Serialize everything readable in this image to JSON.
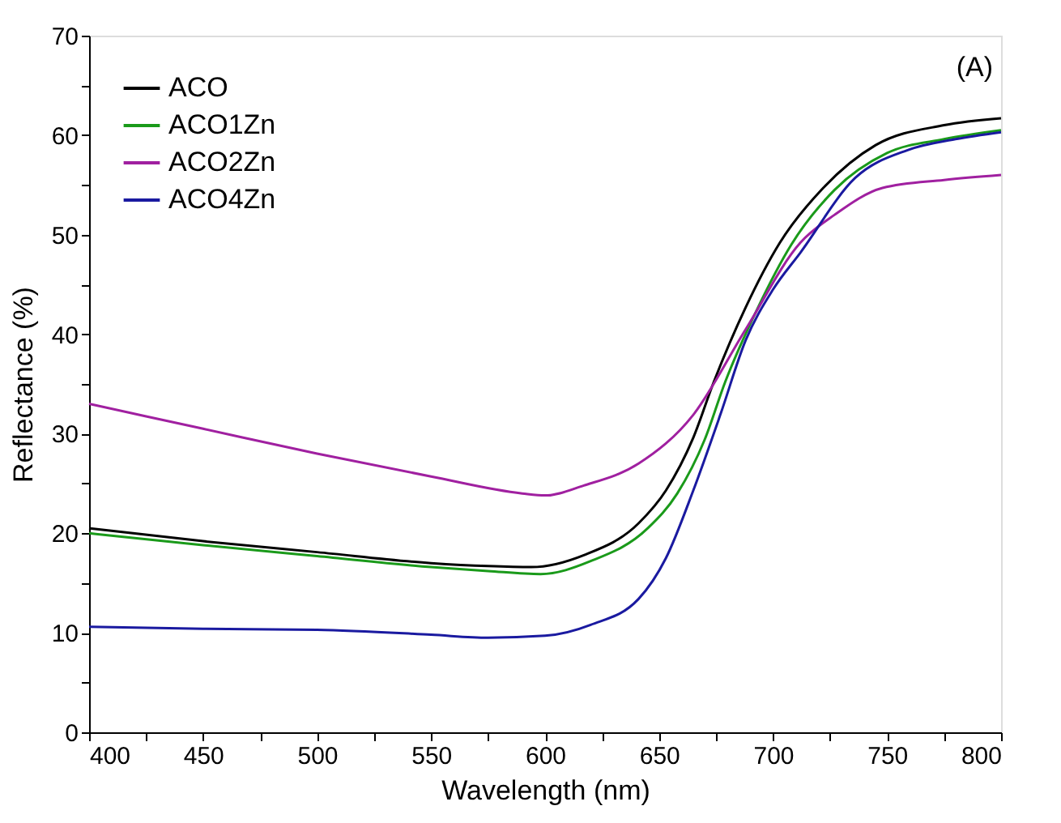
{
  "chart_data": {
    "type": "line",
    "xlabel": "Wavelength (nm)",
    "ylabel": "Reflectance (%)",
    "xlim": [
      400,
      800
    ],
    "ylim": [
      0,
      70
    ],
    "xticks": [
      400,
      {
        "value": 425,
        "label": null
      },
      450,
      {
        "value": 475,
        "label": null
      },
      500,
      {
        "value": 525,
        "label": null
      },
      550,
      {
        "value": 575,
        "label": null
      },
      600,
      {
        "value": 625,
        "label": null
      },
      650,
      {
        "value": 675,
        "label": null
      },
      700,
      {
        "value": 725,
        "label": null
      },
      750,
      {
        "value": 775,
        "label": null
      },
      800
    ],
    "yticks": [
      0,
      {
        "value": 5,
        "label": null
      },
      10,
      {
        "value": 15,
        "label": null
      },
      20,
      {
        "value": 25,
        "label": null
      },
      30,
      {
        "value": 35,
        "label": null
      },
      40,
      {
        "value": 45,
        "label": null
      },
      50,
      {
        "value": 55,
        "label": null
      },
      60,
      {
        "value": 65,
        "label": null
      },
      70
    ],
    "grid": false,
    "legend": "top left",
    "marker": "none",
    "line_style": "solid",
    "annotations": [
      "(A)"
    ],
    "series": [
      {
        "name": "ACO",
        "color": "#000000",
        "x": [
          400,
          450,
          500,
          550,
          575,
          594,
          617,
          641,
          653,
          665,
          674,
          688,
          703,
          722,
          745,
          775,
          800
        ],
        "values": [
          20.5,
          19.2,
          18.1,
          17.0,
          16.7,
          16.6,
          17.8,
          21.0,
          24.3,
          29.6,
          35.2,
          42.7,
          49.2,
          54.7,
          59.0,
          61.0,
          61.7
        ]
      },
      {
        "name": "ACO1Zn",
        "color": "#1a9a1a",
        "x": [
          400,
          450,
          500,
          550,
          575,
          598,
          620,
          645,
          658,
          670,
          679,
          693,
          708,
          727,
          750,
          775,
          800
        ],
        "values": [
          20.0,
          18.8,
          17.7,
          16.6,
          16.2,
          15.9,
          17.2,
          20.5,
          24.0,
          29.4,
          35.2,
          42.5,
          49.0,
          54.5,
          58.2,
          59.6,
          60.5
        ]
      },
      {
        "name": "ACO2Zn",
        "color": "#a020a0",
        "x": [
          400,
          450,
          500,
          550,
          590,
          600,
          617,
          641,
          665,
          688,
          712,
          727,
          748,
          775,
          800
        ],
        "values": [
          33.0,
          30.5,
          28.0,
          25.7,
          24.0,
          23.8,
          24.8,
          27.0,
          31.9,
          40.5,
          49.2,
          52.0,
          54.7,
          55.5,
          56.0
        ]
      },
      {
        "name": "ACO4Zn",
        "color": "#1a1aa0",
        "x": [
          400,
          450,
          500,
          550,
          575,
          600,
          620,
          641,
          653,
          665,
          677,
          688,
          700,
          712,
          736,
          759,
          780,
          800
        ],
        "values": [
          10.6,
          10.4,
          10.3,
          9.8,
          9.5,
          9.7,
          10.8,
          13.4,
          17.5,
          24.3,
          32.0,
          39.4,
          44.5,
          48.2,
          55.7,
          58.5,
          59.6,
          60.3
        ]
      }
    ]
  }
}
